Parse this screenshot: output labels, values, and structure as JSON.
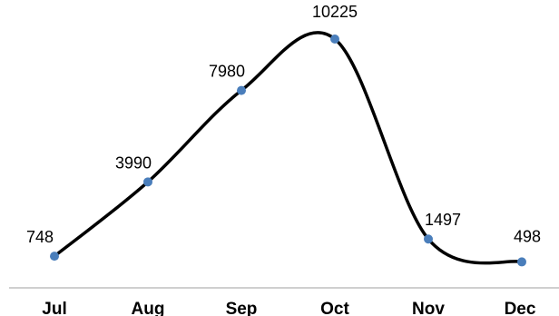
{
  "chart_data": {
    "type": "line",
    "categories": [
      "Jul",
      "Aug",
      "Sep",
      "Oct",
      "Nov",
      "Dec"
    ],
    "series": [
      {
        "values": [
          748,
          3990,
          7980,
          10225,
          1497,
          498
        ]
      }
    ],
    "data_labels": [
      "748",
      "3990",
      "7980",
      "10225",
      "1497",
      "498"
    ],
    "title": "",
    "xlabel": "",
    "ylabel": "",
    "smooth": true,
    "grid": false,
    "legend": "none",
    "colors": {
      "line": "#000000",
      "marker": "#4a7ebb",
      "axis": "#bfbfbf"
    }
  }
}
